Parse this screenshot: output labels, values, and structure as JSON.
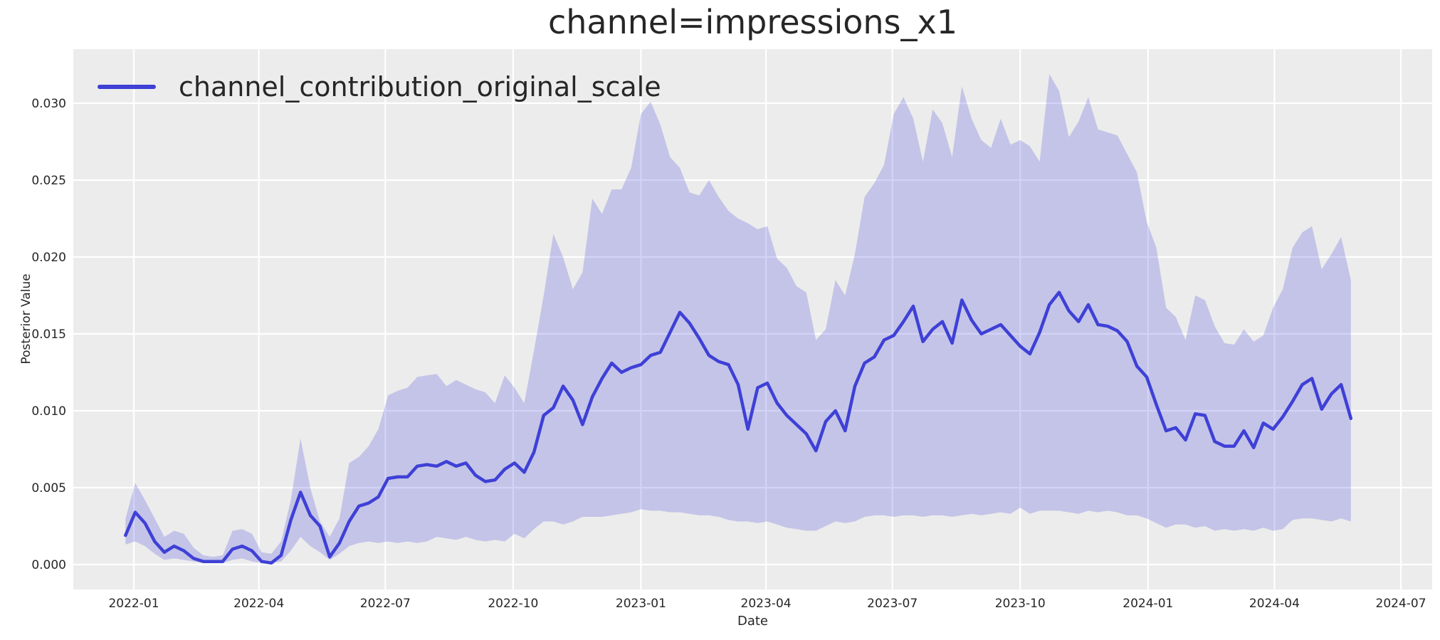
{
  "chart": {
    "title": "channel=impressions_x1",
    "legend_label": "channel_contribution_original_scale",
    "xlabel": "Date",
    "ylabel": "Posterior Value"
  },
  "colors": {
    "line": "#3e40d6",
    "band_fill": "#4343de",
    "band_opacity": 0.235,
    "plot_background": "#ececec",
    "gridline": "#ffffff",
    "text": "#262626",
    "figure_background": "#ffffff"
  },
  "chart_data": {
    "type": "line",
    "title": "channel=impressions_x1",
    "xlabel": "Date",
    "ylabel": "Posterior Value",
    "legend": [
      "channel_contribution_original_scale"
    ],
    "legend_position": "upper-left",
    "grid": true,
    "x_ticks": [
      "2022-01",
      "2022-04",
      "2022-07",
      "2022-10",
      "2023-01",
      "2023-04",
      "2023-07",
      "2023-10",
      "2024-01",
      "2024-04",
      "2024-07"
    ],
    "y_ticks": [
      0.0,
      0.005,
      0.01,
      0.015,
      0.02,
      0.025,
      0.03
    ],
    "y_tick_labels": [
      "0.000",
      "0.005",
      "0.010",
      "0.015",
      "0.020",
      "0.025",
      "0.030"
    ],
    "ylim": [
      -0.0017,
      0.0343
    ],
    "frequency": "weekly",
    "dates": [
      "2021-12-26",
      "2022-01-02",
      "2022-01-09",
      "2022-01-16",
      "2022-01-23",
      "2022-01-30",
      "2022-02-06",
      "2022-02-13",
      "2022-02-20",
      "2022-02-27",
      "2022-03-06",
      "2022-03-13",
      "2022-03-20",
      "2022-03-27",
      "2022-04-03",
      "2022-04-10",
      "2022-04-17",
      "2022-04-24",
      "2022-05-01",
      "2022-05-08",
      "2022-05-15",
      "2022-05-22",
      "2022-05-29",
      "2022-06-05",
      "2022-06-12",
      "2022-06-19",
      "2022-06-26",
      "2022-07-03",
      "2022-07-10",
      "2022-07-17",
      "2022-07-24",
      "2022-07-31",
      "2022-08-07",
      "2022-08-14",
      "2022-08-21",
      "2022-08-28",
      "2022-09-04",
      "2022-09-11",
      "2022-09-18",
      "2022-09-25",
      "2022-10-02",
      "2022-10-09",
      "2022-10-16",
      "2022-10-23",
      "2022-10-30",
      "2022-11-06",
      "2022-11-13",
      "2022-11-20",
      "2022-11-27",
      "2022-12-04",
      "2022-12-11",
      "2022-12-18",
      "2022-12-25",
      "2023-01-01",
      "2023-01-08",
      "2023-01-15",
      "2023-01-22",
      "2023-01-29",
      "2023-02-05",
      "2023-02-12",
      "2023-02-19",
      "2023-02-26",
      "2023-03-05",
      "2023-03-12",
      "2023-03-19",
      "2023-03-26",
      "2023-04-02",
      "2023-04-09",
      "2023-04-16",
      "2023-04-23",
      "2023-04-30",
      "2023-05-07",
      "2023-05-14",
      "2023-05-21",
      "2023-05-28",
      "2023-06-04",
      "2023-06-11",
      "2023-06-18",
      "2023-06-25",
      "2023-07-02",
      "2023-07-09",
      "2023-07-16",
      "2023-07-23",
      "2023-07-30",
      "2023-08-06",
      "2023-08-13",
      "2023-08-20",
      "2023-08-27",
      "2023-09-03",
      "2023-09-10",
      "2023-09-17",
      "2023-09-24",
      "2023-10-01",
      "2023-10-08",
      "2023-10-15",
      "2023-10-22",
      "2023-10-29",
      "2023-11-05",
      "2023-11-12",
      "2023-11-19",
      "2023-11-26",
      "2023-12-03",
      "2023-12-10",
      "2023-12-17",
      "2023-12-24",
      "2023-12-31",
      "2024-01-07",
      "2024-01-14",
      "2024-01-21",
      "2024-01-28",
      "2024-02-04",
      "2024-02-11",
      "2024-02-18",
      "2024-02-25",
      "2024-03-03",
      "2024-03-10",
      "2024-03-17",
      "2024-03-24",
      "2024-03-31",
      "2024-04-07",
      "2024-04-14",
      "2024-04-21",
      "2024-04-28",
      "2024-05-05",
      "2024-05-12",
      "2024-05-19",
      "2024-05-26"
    ],
    "series": [
      {
        "name": "channel_contribution_original_scale (posterior mean)",
        "values": [
          0.0019,
          0.0034,
          0.0027,
          0.0015,
          0.0008,
          0.0012,
          0.0009,
          0.0004,
          0.0002,
          0.0002,
          0.0002,
          0.001,
          0.0012,
          0.0009,
          0.0002,
          0.0001,
          0.0006,
          0.0029,
          0.0047,
          0.0032,
          0.0025,
          0.0005,
          0.0014,
          0.0028,
          0.0038,
          0.004,
          0.0044,
          0.0056,
          0.0057,
          0.0057,
          0.0064,
          0.0065,
          0.0064,
          0.0067,
          0.0064,
          0.0066,
          0.0058,
          0.0054,
          0.0055,
          0.0062,
          0.0066,
          0.006,
          0.0073,
          0.0097,
          0.0102,
          0.0116,
          0.0107,
          0.0091,
          0.0109,
          0.0121,
          0.0131,
          0.0125,
          0.0128,
          0.013,
          0.0136,
          0.0138,
          0.0151,
          0.0164,
          0.0157,
          0.0147,
          0.0136,
          0.0132,
          0.013,
          0.0117,
          0.0088,
          0.0115,
          0.0118,
          0.0105,
          0.0097,
          0.0091,
          0.0085,
          0.0074,
          0.0093,
          0.01,
          0.0087,
          0.0116,
          0.0131,
          0.0135,
          0.0146,
          0.0149,
          0.0158,
          0.0168,
          0.0145,
          0.0153,
          0.0158,
          0.0144,
          0.0172,
          0.0159,
          0.015,
          0.0153,
          0.0156,
          0.0149,
          0.0142,
          0.0137,
          0.0151,
          0.0169,
          0.0177,
          0.0165,
          0.0158,
          0.0169,
          0.0156,
          0.0155,
          0.0152,
          0.0145,
          0.0129,
          0.0122,
          0.0104,
          0.0087,
          0.0089,
          0.0081,
          0.0098,
          0.0097,
          0.008,
          0.0077,
          0.0077,
          0.0087,
          0.0076,
          0.0092,
          0.0088,
          0.0096,
          0.0106,
          0.0117,
          0.0121,
          0.0101,
          0.0111,
          0.0117,
          0.0095
        ]
      },
      {
        "name": "HDI upper bound",
        "values": [
          0.003,
          0.0053,
          0.0042,
          0.003,
          0.0018,
          0.0022,
          0.002,
          0.0011,
          0.0006,
          0.0005,
          0.0006,
          0.0022,
          0.0023,
          0.002,
          0.0008,
          0.0007,
          0.0015,
          0.0042,
          0.0082,
          0.005,
          0.0028,
          0.0018,
          0.003,
          0.0066,
          0.007,
          0.0077,
          0.0088,
          0.011,
          0.0113,
          0.0115,
          0.0122,
          0.0123,
          0.0124,
          0.0116,
          0.012,
          0.0117,
          0.0114,
          0.0112,
          0.0105,
          0.0123,
          0.0115,
          0.0105,
          0.0139,
          0.0175,
          0.0215,
          0.02,
          0.0179,
          0.019,
          0.0238,
          0.0228,
          0.0244,
          0.0244,
          0.0258,
          0.0293,
          0.0301,
          0.0286,
          0.0265,
          0.0258,
          0.0242,
          0.024,
          0.025,
          0.0239,
          0.023,
          0.0225,
          0.0222,
          0.0218,
          0.022,
          0.0199,
          0.0193,
          0.0181,
          0.0177,
          0.0146,
          0.0153,
          0.0185,
          0.0175,
          0.0202,
          0.0239,
          0.0248,
          0.026,
          0.0293,
          0.0304,
          0.029,
          0.0262,
          0.0296,
          0.0287,
          0.0265,
          0.0311,
          0.029,
          0.0276,
          0.0271,
          0.029,
          0.0273,
          0.0276,
          0.0272,
          0.0262,
          0.0319,
          0.0308,
          0.0278,
          0.0288,
          0.0304,
          0.0283,
          0.0281,
          0.0279,
          0.0267,
          0.0255,
          0.0223,
          0.0206,
          0.0167,
          0.0161,
          0.0146,
          0.0175,
          0.0172,
          0.0155,
          0.0144,
          0.0143,
          0.0153,
          0.0145,
          0.0149,
          0.0167,
          0.0179,
          0.0206,
          0.0216,
          0.022,
          0.0192,
          0.0202,
          0.0213,
          0.0185
        ]
      },
      {
        "name": "HDI lower bound",
        "values": [
          0.0013,
          0.0015,
          0.0012,
          0.0007,
          0.0003,
          0.0004,
          0.0003,
          0.0002,
          0.0001,
          0.0001,
          0.0001,
          0.0003,
          0.0004,
          0.0002,
          0.0001,
          0.0001,
          0.0002,
          0.0009,
          0.0018,
          0.0012,
          0.0008,
          0.0003,
          0.0007,
          0.0012,
          0.0014,
          0.0015,
          0.0014,
          0.0015,
          0.0014,
          0.0015,
          0.0014,
          0.0015,
          0.0018,
          0.0017,
          0.0016,
          0.0018,
          0.0016,
          0.0015,
          0.0016,
          0.0015,
          0.002,
          0.0017,
          0.0023,
          0.0028,
          0.0028,
          0.0026,
          0.0028,
          0.0031,
          0.0031,
          0.0031,
          0.0032,
          0.0033,
          0.0034,
          0.0036,
          0.0035,
          0.0035,
          0.0034,
          0.0034,
          0.0033,
          0.0032,
          0.0032,
          0.0031,
          0.0029,
          0.0028,
          0.0028,
          0.0027,
          0.0028,
          0.0026,
          0.0024,
          0.0023,
          0.0022,
          0.0022,
          0.0025,
          0.0028,
          0.0027,
          0.0028,
          0.0031,
          0.0032,
          0.0032,
          0.0031,
          0.0032,
          0.0032,
          0.0031,
          0.0032,
          0.0032,
          0.0031,
          0.0032,
          0.0033,
          0.0032,
          0.0033,
          0.0034,
          0.0033,
          0.0037,
          0.0033,
          0.0035,
          0.0035,
          0.0035,
          0.0034,
          0.0033,
          0.0035,
          0.0034,
          0.0035,
          0.0034,
          0.0032,
          0.0032,
          0.003,
          0.0027,
          0.0024,
          0.0026,
          0.0026,
          0.0024,
          0.0025,
          0.0022,
          0.0023,
          0.0022,
          0.0023,
          0.0022,
          0.0024,
          0.0022,
          0.0023,
          0.0029,
          0.003,
          0.003,
          0.0029,
          0.0028,
          0.003,
          0.0028
        ]
      }
    ]
  }
}
